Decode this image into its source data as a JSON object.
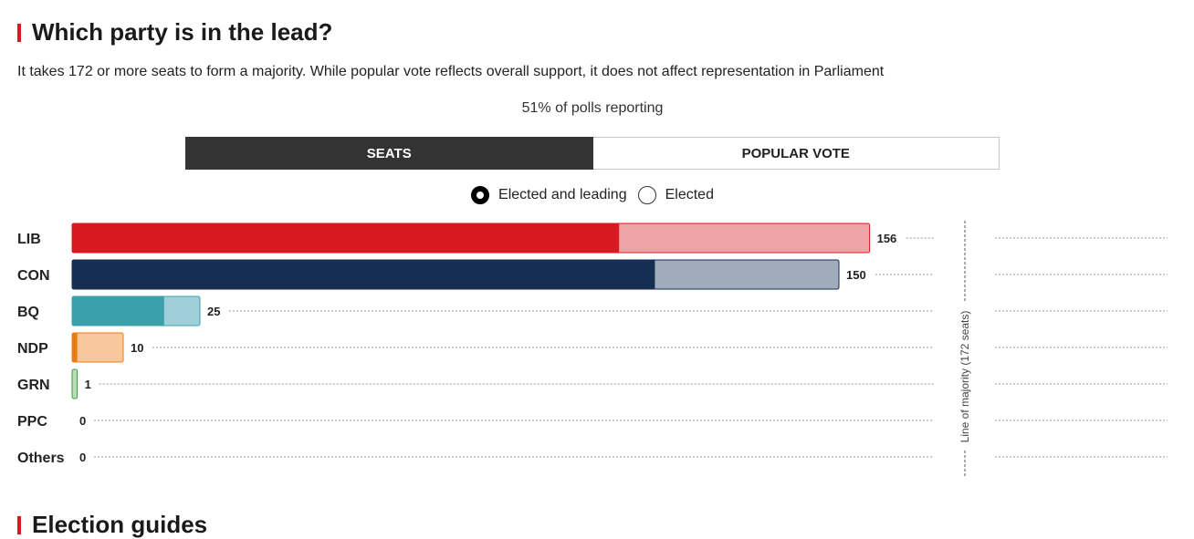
{
  "section1": {
    "title": "Which party is in the lead?"
  },
  "description": "It takes 172 or more seats to form a majority. While popular vote reflects overall support, it does not affect representation in Parliament",
  "reporting": "51% of polls reporting",
  "tabs": [
    {
      "label": "SEATS",
      "active": true
    },
    {
      "label": "POPULAR VOTE",
      "active": false
    }
  ],
  "radios": [
    {
      "label": "Elected and leading",
      "checked": true
    },
    {
      "label": "Elected",
      "checked": false
    }
  ],
  "section2": {
    "title": "Election guides"
  },
  "chart_data": {
    "type": "bar",
    "orientation": "horizontal",
    "stacked": true,
    "majority_line": {
      "value": 172,
      "label": "Line of majority (172 seats)"
    },
    "categories": [
      "LIB",
      "CON",
      "BQ",
      "NDP",
      "GRN",
      "PPC",
      "Others"
    ],
    "totals": [
      156,
      150,
      25,
      10,
      1,
      0,
      0
    ],
    "series": [
      {
        "values": [
          107,
          114,
          18,
          1,
          0,
          0,
          0
        ]
      },
      {
        "values": [
          49,
          36,
          7,
          9,
          1,
          0,
          0
        ]
      }
    ],
    "colors": {
      "LIB": [
        "#d71920",
        "#f0a3a6"
      ],
      "CON": [
        "#162e52",
        "#a0abbb"
      ],
      "BQ": [
        "#3aa0aa",
        "#9fd0da"
      ],
      "NDP": [
        "#e87d11",
        "#f8c89c"
      ],
      "GRN": [
        "#3a9a3a",
        "#b7e0b7"
      ],
      "PPC": [
        "#6b3fa0",
        "#cbb7e0"
      ],
      "Others": [
        "#888888",
        "#cccccc"
      ]
    }
  }
}
